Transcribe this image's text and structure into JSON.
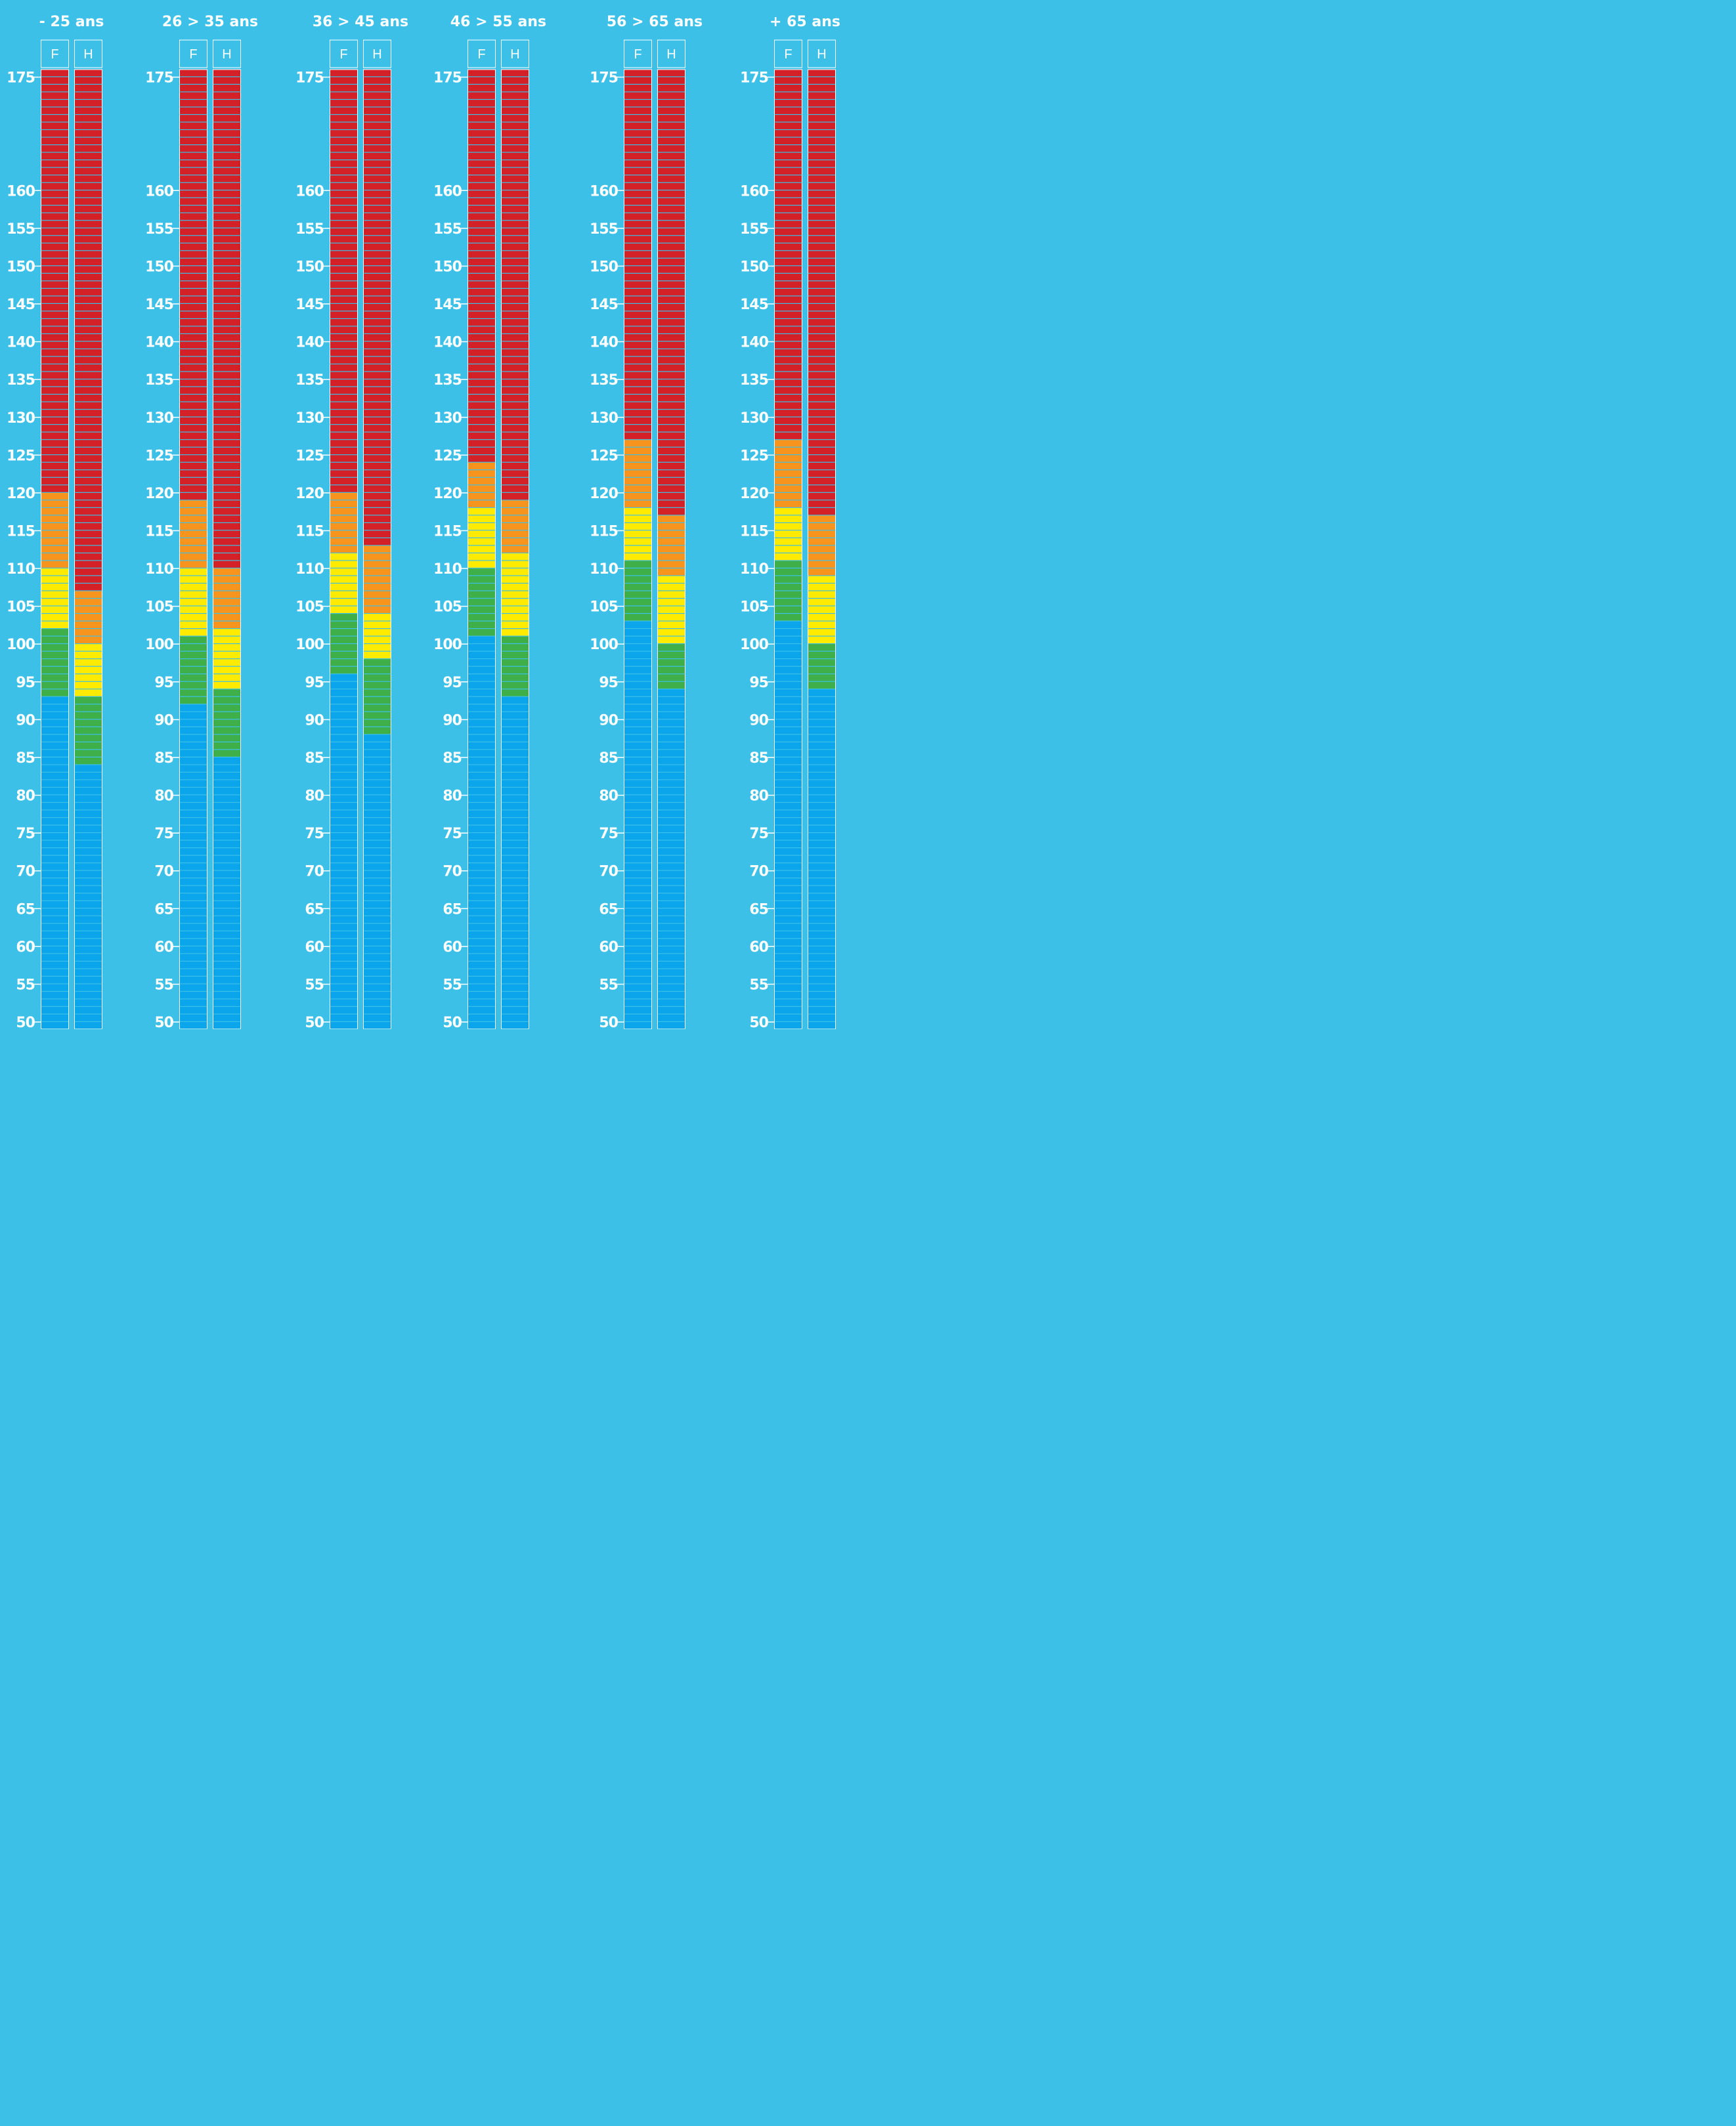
{
  "colors": {
    "background": "#3cc0e8",
    "blue": "#0aa5ea",
    "green": "#3fb049",
    "yellow": "#ffeb00",
    "orange": "#f7941d",
    "red": "#d42128",
    "segment_line": "#ffffff"
  },
  "chart_data": {
    "type": "bar",
    "ylim": [
      49,
      176
    ],
    "y_ticks": [
      175,
      160,
      155,
      150,
      145,
      140,
      135,
      130,
      125,
      120,
      115,
      110,
      105,
      100,
      95,
      90,
      85,
      80,
      75,
      70,
      65,
      60,
      55,
      50
    ],
    "zone_order": [
      "blue",
      "green",
      "yellow",
      "orange",
      "red"
    ],
    "groups": [
      {
        "title": "- 25 ans",
        "bars": [
          {
            "label": "F",
            "zones": {
              "blue_top": 93.5,
              "green_top": 102.5,
              "yellow_top": 110.5,
              "orange_top": 120.5
            }
          },
          {
            "label": "H",
            "zones": {
              "blue_top": 84.5,
              "green_top": 93.5,
              "yellow_top": 100.5,
              "orange_top": 107.5
            }
          }
        ]
      },
      {
        "title": "26 > 35 ans",
        "bars": [
          {
            "label": "F",
            "zones": {
              "blue_top": 92.5,
              "green_top": 101.5,
              "yellow_top": 110.5,
              "orange_top": 119.5
            }
          },
          {
            "label": "H",
            "zones": {
              "blue_top": 85.5,
              "green_top": 94.5,
              "yellow_top": 102.5,
              "orange_top": 110.5
            }
          }
        ]
      },
      {
        "title": "36 > 45 ans",
        "bars": [
          {
            "label": "F",
            "zones": {
              "blue_top": 96.5,
              "green_top": 104.5,
              "yellow_top": 112.5,
              "orange_top": 120.5
            }
          },
          {
            "label": "H",
            "zones": {
              "blue_top": 88.5,
              "green_top": 98.5,
              "yellow_top": 104.5,
              "orange_top": 113.5
            }
          }
        ]
      },
      {
        "title": "46 > 55 ans",
        "bars": [
          {
            "label": "F",
            "zones": {
              "blue_top": 101.5,
              "green_top": 110.5,
              "yellow_top": 118.5,
              "orange_top": 124.5
            }
          },
          {
            "label": "H",
            "zones": {
              "blue_top": 93.5,
              "green_top": 101.5,
              "yellow_top": 112.5,
              "orange_top": 119.5
            }
          }
        ]
      },
      {
        "title": "56 > 65 ans",
        "bars": [
          {
            "label": "F",
            "zones": {
              "blue_top": 103.5,
              "green_top": 111.5,
              "yellow_top": 118.5,
              "orange_top": 127.5
            }
          },
          {
            "label": "H",
            "zones": {
              "blue_top": 94.5,
              "green_top": 100.5,
              "yellow_top": 109.5,
              "orange_top": 117.5
            }
          }
        ]
      },
      {
        "title": "+ 65 ans",
        "bars": [
          {
            "label": "F",
            "zones": {
              "blue_top": 103.5,
              "green_top": 111.5,
              "yellow_top": 118.5,
              "orange_top": 127.5
            }
          },
          {
            "label": "H",
            "zones": {
              "blue_top": 94.5,
              "green_top": 100.5,
              "yellow_top": 109.5,
              "orange_top": 117.5
            }
          }
        ]
      }
    ]
  }
}
